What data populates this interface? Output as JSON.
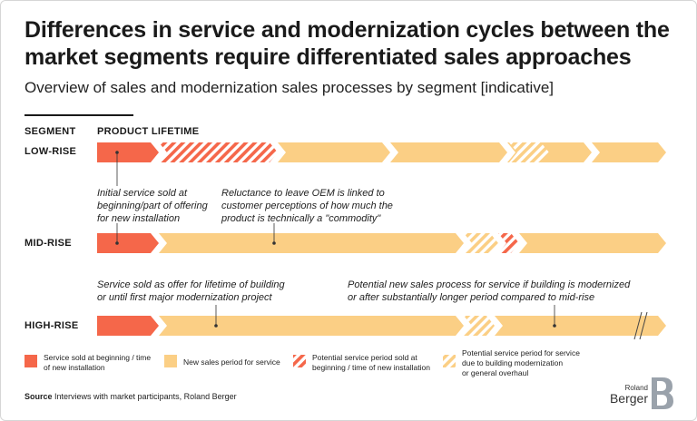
{
  "title": "Differences in service and modernization cycles between the market segments require differentiated sales approaches",
  "subtitle": "Overview of sales and modernization sales processes by segment [indicative]",
  "headers": {
    "segment": "SEGMENT",
    "lifetime": "PRODUCT LIFETIME"
  },
  "segments": {
    "low": "LOW-RISE",
    "mid": "MID-RISE",
    "high": "HIGH-RISE"
  },
  "notes": {
    "initial_service": [
      "Initial service sold at",
      "beginning/part of offering",
      "for new installation"
    ],
    "reluctance": [
      "Reluctance to leave OEM is linked to",
      "customer perceptions of how much the",
      "product is technically a \"commodity\""
    ],
    "lifetime_offer": [
      "Service sold as offer for lifetime of building",
      "or until first major modernization project"
    ],
    "potential_new": [
      "Potential new sales process for service if building is modernized",
      "or after substantially longer period compared to mid-rise"
    ]
  },
  "legend": [
    {
      "style": "solid-red",
      "lines": [
        "Service sold at beginning / time",
        "of new installation"
      ]
    },
    {
      "style": "solid-yellow",
      "lines": [
        "New sales period for service"
      ]
    },
    {
      "style": "hatch-red",
      "lines": [
        "Potential service period sold at",
        "beginning / time of new installation"
      ]
    },
    {
      "style": "hatch-yellow",
      "lines": [
        "Potential service period for service",
        "due to building modernization",
        "or general overhaul"
      ]
    }
  ],
  "source": {
    "label": "Source",
    "text": "Interviews with market participants, Roland Berger"
  },
  "logo": {
    "line1": "Roland",
    "line2": "Berger"
  },
  "colors": {
    "red": "#f5674a",
    "yellow": "#fbcf85",
    "text": "#1a1a1a"
  }
}
